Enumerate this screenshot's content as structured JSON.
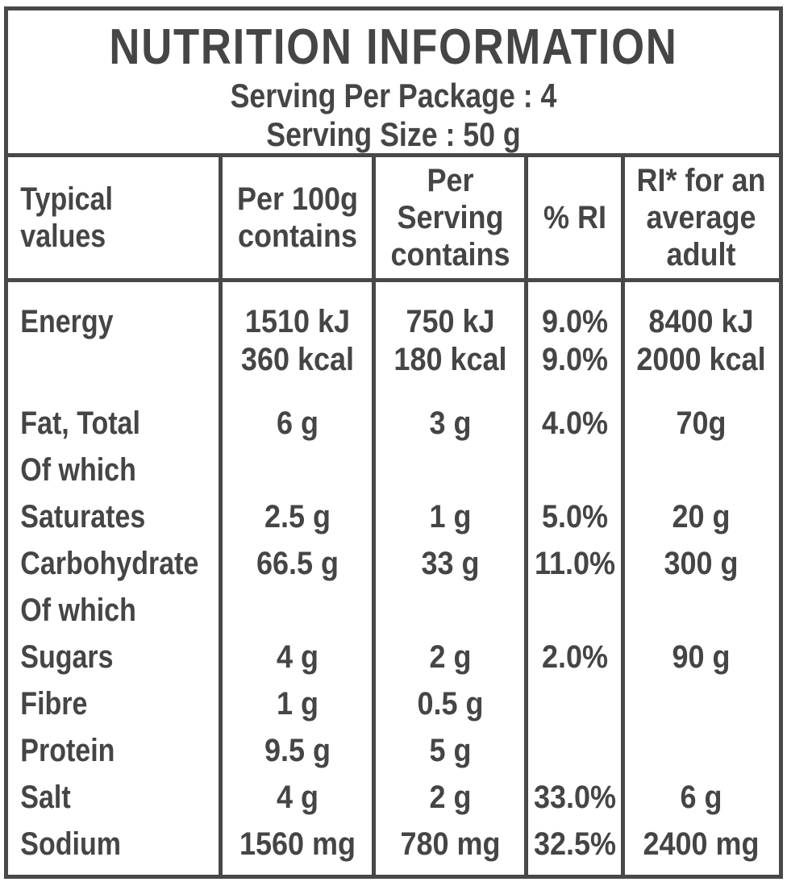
{
  "title_block": {
    "title": "NUTRITION INFORMATION",
    "serving_per_package": "Serving Per Package : 4",
    "serving_size": "Serving Size : 50 g"
  },
  "table": {
    "headers": [
      "Typical\nvalues",
      "Per 100g\ncontains",
      "Per\nServing\ncontains",
      "% RI",
      "RI* for an\naverage\nadult"
    ],
    "rows": [
      {
        "cells": [
          "Energy",
          "1510 kJ\n360 kcal",
          "750 kJ\n180 kcal",
          "9.0%\n9.0%",
          "8400 kJ\n2000 kcal"
        ]
      },
      {
        "cells": [
          "Fat, Total",
          "6 g",
          "3 g",
          "4.0%",
          "70g"
        ]
      },
      {
        "cells": [
          "Of which",
          "",
          "",
          "",
          ""
        ]
      },
      {
        "cells": [
          "Saturates",
          "2.5 g",
          "1 g",
          "5.0%",
          "20 g"
        ]
      },
      {
        "cells": [
          "Carbohydrate",
          "66.5 g",
          "33 g",
          "11.0%",
          "300 g"
        ]
      },
      {
        "cells": [
          "Of which",
          "",
          "",
          "",
          ""
        ]
      },
      {
        "cells": [
          "Sugars",
          "4 g",
          "2 g",
          "2.0%",
          "90 g"
        ]
      },
      {
        "cells": [
          "Fibre",
          "1 g",
          "0.5 g",
          "",
          ""
        ]
      },
      {
        "cells": [
          "Protein",
          "9.5 g",
          "5 g",
          "",
          ""
        ]
      },
      {
        "cells": [
          "Salt",
          "4 g",
          "2 g",
          "33.0%",
          "6 g"
        ]
      },
      {
        "cells": [
          "Sodium",
          "1560 mg",
          "780 mg",
          "32.5%",
          "2400 mg"
        ]
      }
    ]
  },
  "colors": {
    "text": "#454545",
    "border": "#484848",
    "background": "#ffffff"
  }
}
